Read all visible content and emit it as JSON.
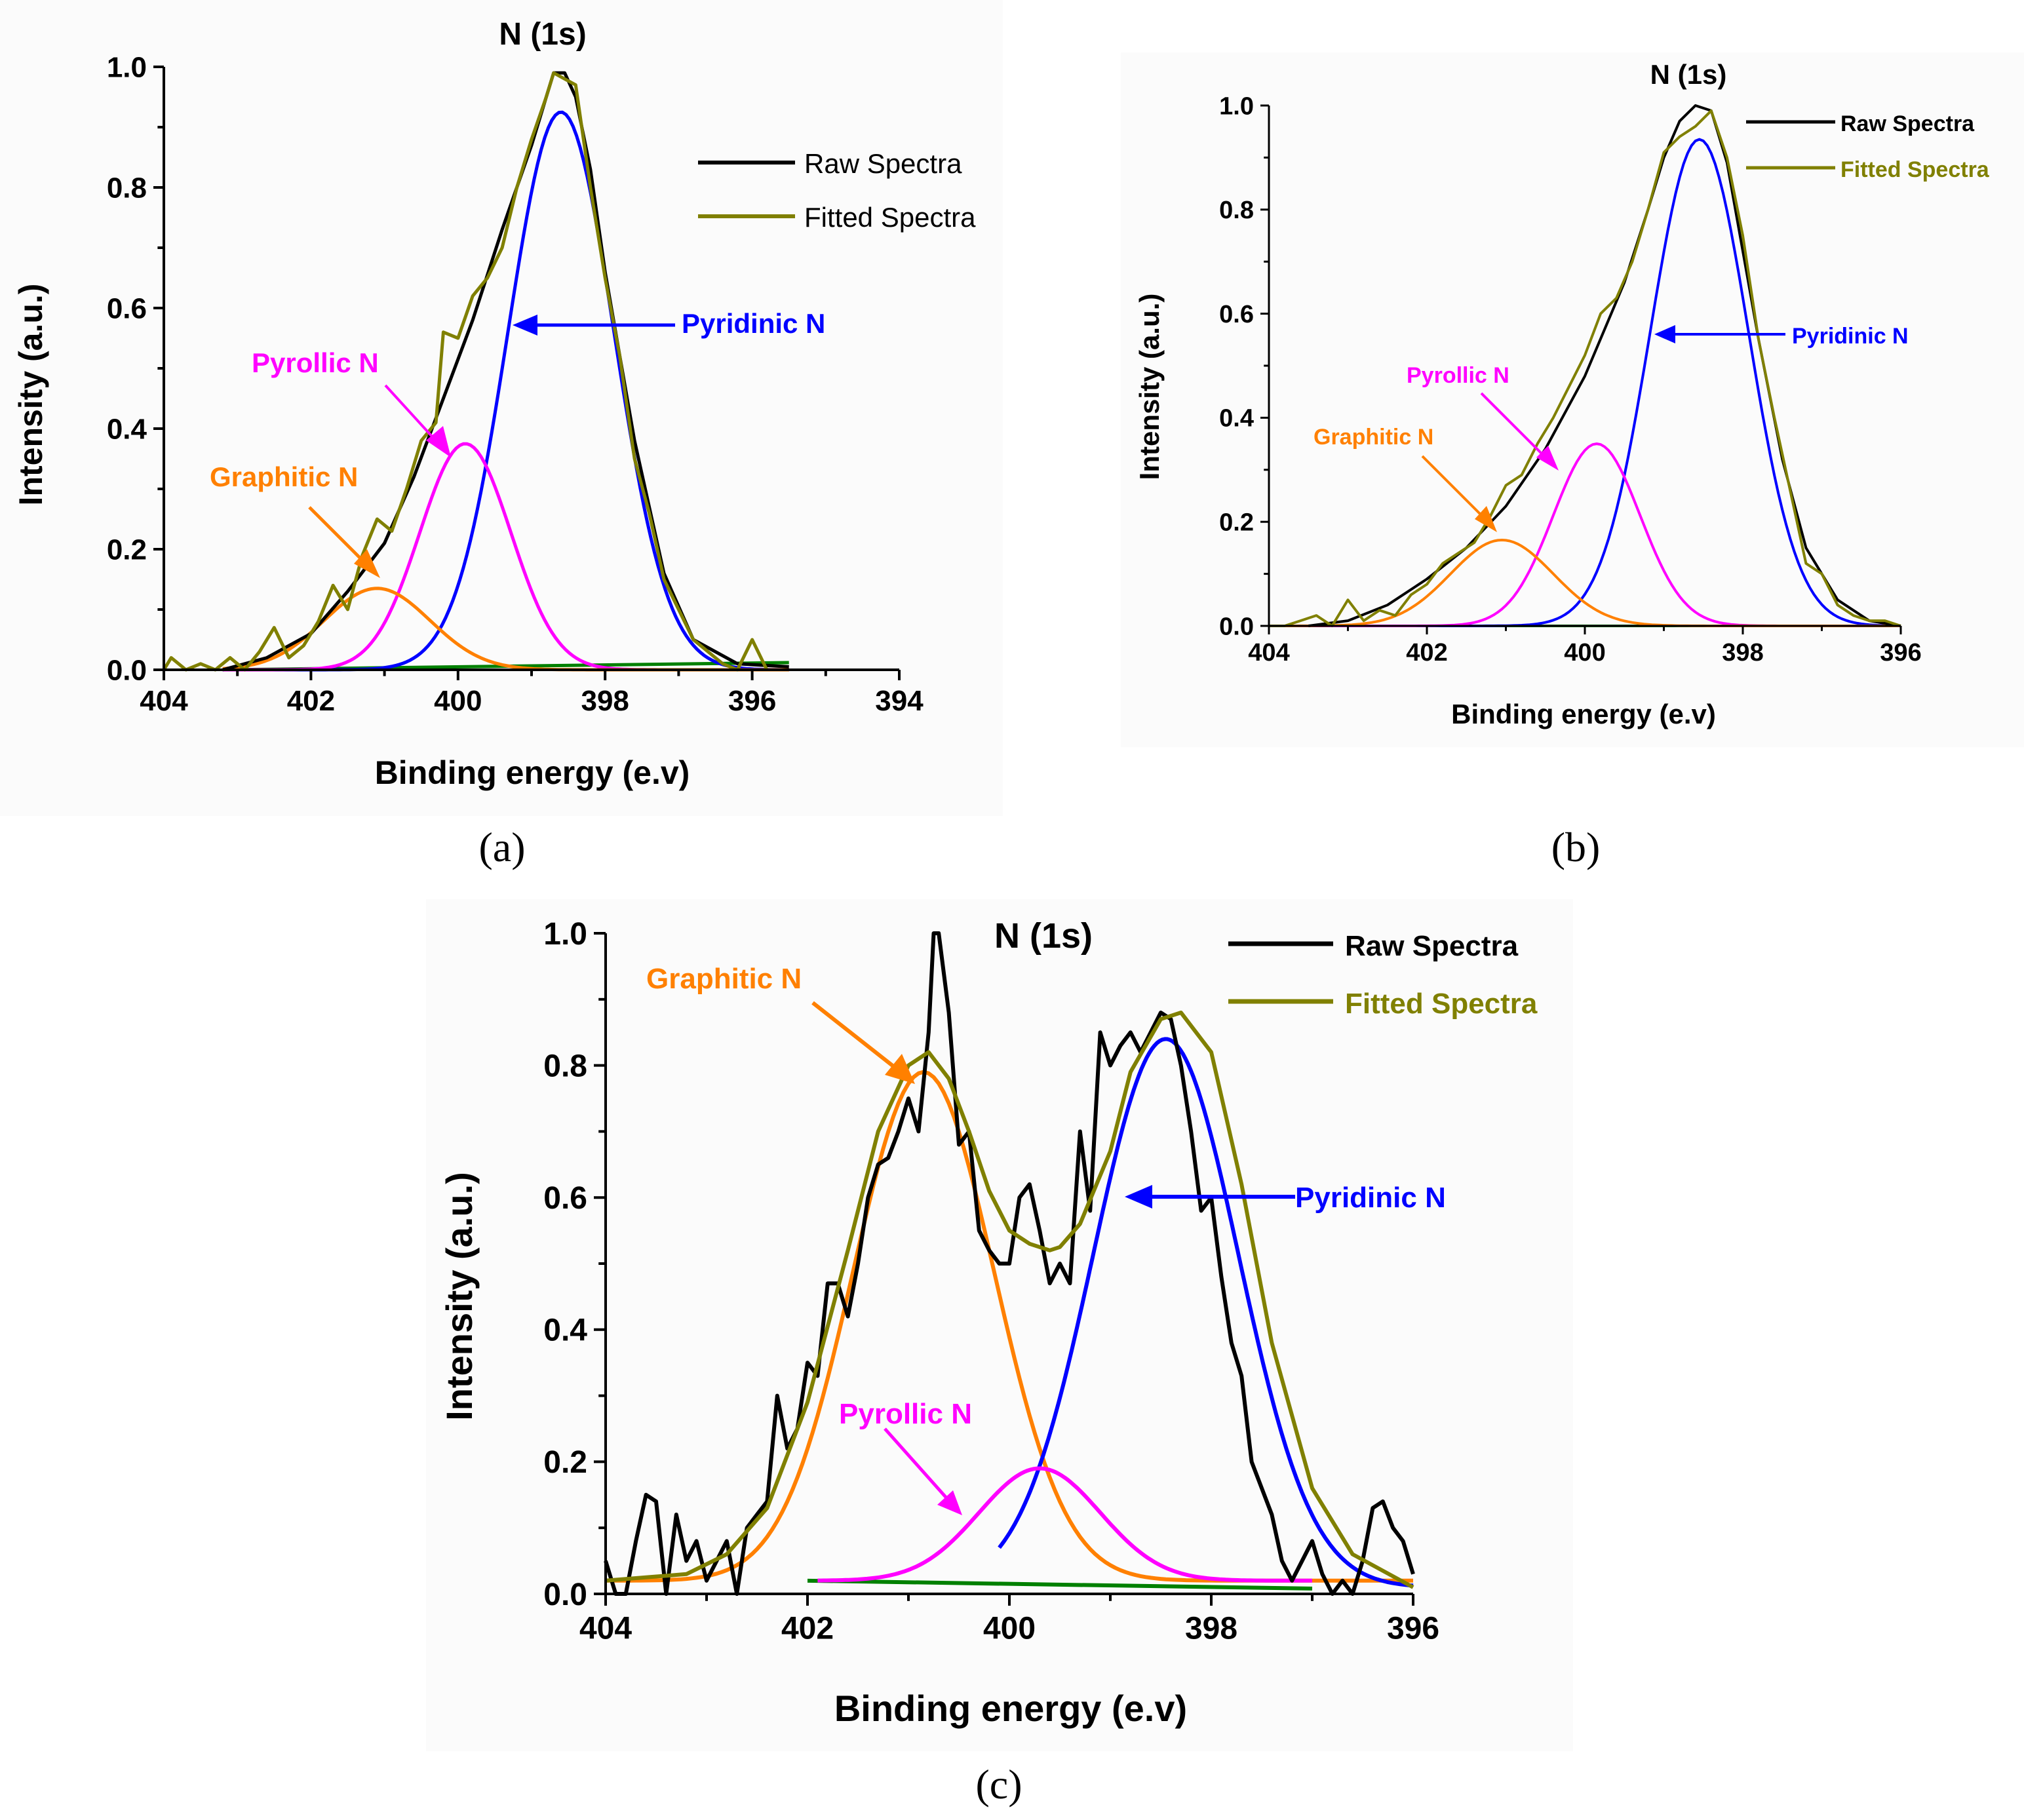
{
  "figure": {
    "captions": [
      "(a)",
      "(b)",
      "(c)"
    ]
  },
  "colors": {
    "raw": "#000000",
    "fitted": "#808000",
    "pyridinic": "#0000ff",
    "pyrollic": "#ff00ff",
    "graphitic": "#ff8000",
    "baseline": "#008000",
    "axis": "#000000"
  },
  "chart_data": [
    {
      "panel": "(a)",
      "type": "line",
      "title": "N (1s)",
      "xlabel": "Binding energy (e.v)",
      "ylabel": "Intensity (a.u.)",
      "xlim": [
        404,
        394
      ],
      "ylim": [
        0.0,
        1.0
      ],
      "xticks": [
        404,
        402,
        400,
        398,
        396,
        394
      ],
      "xtick_labels": [
        "404",
        "402",
        "400",
        "398",
        "396",
        "394"
      ],
      "yticks": [
        0.0,
        0.2,
        0.4,
        0.6,
        0.8,
        1.0
      ],
      "ytick_labels": [
        "0.0",
        "0.2",
        "0.4",
        "0.6",
        "0.8",
        "1.0"
      ],
      "legend": [
        "Raw Spectra",
        "Fitted Spectra"
      ],
      "legend_position": "top-right",
      "baseline": {
        "x": [
          403.2,
          395.5
        ],
        "y": [
          0.0,
          0.012
        ]
      },
      "components": [
        {
          "name": "Pyridinic N",
          "center": 398.6,
          "height": 0.925,
          "sigma": 0.72,
          "from": 403.2,
          "to": 395.5
        },
        {
          "name": "Pyrollic N",
          "center": 399.9,
          "height": 0.375,
          "sigma": 0.62,
          "from": 403.2,
          "to": 395.5
        },
        {
          "name": "Graphitic N",
          "center": 401.1,
          "height": 0.135,
          "sigma": 0.72,
          "from": 403.2,
          "to": 395.5
        }
      ],
      "series": [
        {
          "name": "Raw Spectra",
          "x": [
            403.2,
            402.6,
            402.0,
            401.5,
            401.0,
            400.6,
            400.2,
            399.8,
            399.4,
            399.0,
            398.8,
            398.7,
            398.55,
            398.4,
            398.2,
            398.0,
            397.6,
            397.2,
            396.8,
            396.2,
            395.5
          ],
          "y": [
            0.0,
            0.02,
            0.06,
            0.13,
            0.21,
            0.32,
            0.45,
            0.58,
            0.73,
            0.87,
            0.95,
            0.99,
            0.99,
            0.95,
            0.83,
            0.66,
            0.38,
            0.16,
            0.05,
            0.01,
            0.005
          ]
        },
        {
          "name": "Fitted Spectra",
          "x": [
            404.0,
            403.9,
            403.7,
            403.5,
            403.3,
            403.1,
            402.9,
            402.7,
            402.5,
            402.3,
            402.1,
            401.9,
            401.7,
            401.5,
            401.3,
            401.1,
            400.9,
            400.7,
            400.5,
            400.3,
            400.2,
            400.0,
            399.8,
            399.6,
            399.4,
            399.2,
            399.0,
            398.8,
            398.7,
            398.55,
            398.4,
            398.2,
            398.0,
            397.8,
            397.6,
            397.4,
            397.2,
            397.0,
            396.8,
            396.6,
            396.4,
            396.2,
            396.0,
            395.8
          ],
          "y": [
            0.0,
            0.02,
            0.0,
            0.01,
            0.0,
            0.02,
            0.0,
            0.03,
            0.07,
            0.02,
            0.04,
            0.08,
            0.14,
            0.1,
            0.19,
            0.25,
            0.23,
            0.3,
            0.38,
            0.41,
            0.56,
            0.55,
            0.62,
            0.65,
            0.7,
            0.8,
            0.88,
            0.95,
            0.99,
            0.98,
            0.97,
            0.8,
            0.65,
            0.52,
            0.35,
            0.26,
            0.15,
            0.1,
            0.05,
            0.03,
            0.01,
            0.0,
            0.05,
            0.0
          ]
        }
      ],
      "annotations": [
        {
          "text": "Pyridinic N",
          "color": "pyridinic"
        },
        {
          "text": "Pyrollic N",
          "color": "pyrollic"
        },
        {
          "text": "Graphitic N",
          "color": "graphitic"
        }
      ]
    },
    {
      "panel": "(b)",
      "type": "line",
      "title": "N (1s)",
      "xlabel": "Binding energy (e.v)",
      "ylabel": "Intensity (a.u.)",
      "xlim": [
        404,
        396
      ],
      "ylim": [
        0.0,
        1.0
      ],
      "xticks": [
        404,
        402,
        400,
        398,
        396
      ],
      "xtick_labels": [
        "404",
        "402",
        "400",
        "398",
        "396"
      ],
      "yticks": [
        0.0,
        0.2,
        0.4,
        0.6,
        0.8,
        1.0
      ],
      "ytick_labels": [
        "0.0",
        "0.2",
        "0.4",
        "0.6",
        "0.8",
        "1.0"
      ],
      "legend": [
        "Raw Spectra",
        "Fitted Spectra"
      ],
      "legend_position": "top-right",
      "baseline": {
        "x": [
          404.0,
          396.0
        ],
        "y": [
          0.0,
          0.0
        ]
      },
      "components": [
        {
          "name": "Pyridinic N",
          "center": 398.55,
          "height": 0.935,
          "sigma": 0.62,
          "from": 404.0,
          "to": 396.0
        },
        {
          "name": "Pyrollic N",
          "center": 399.85,
          "height": 0.35,
          "sigma": 0.55,
          "from": 404.0,
          "to": 396.0
        },
        {
          "name": "Graphitic N",
          "center": 401.05,
          "height": 0.165,
          "sigma": 0.65,
          "from": 404.0,
          "to": 396.0
        }
      ],
      "series": [
        {
          "name": "Raw Spectra",
          "x": [
            403.5,
            403.0,
            402.5,
            402.0,
            401.5,
            401.0,
            400.5,
            400.0,
            399.5,
            399.2,
            399.0,
            398.8,
            398.6,
            398.4,
            398.2,
            398.0,
            397.8,
            397.5,
            397.2,
            396.8,
            396.4,
            396.0
          ],
          "y": [
            0.0,
            0.01,
            0.04,
            0.09,
            0.15,
            0.23,
            0.34,
            0.48,
            0.66,
            0.8,
            0.9,
            0.97,
            1.0,
            0.99,
            0.89,
            0.72,
            0.55,
            0.32,
            0.15,
            0.05,
            0.01,
            0.0
          ]
        },
        {
          "name": "Fitted Spectra",
          "x": [
            404.0,
            403.8,
            403.6,
            403.4,
            403.2,
            403.0,
            402.8,
            402.6,
            402.4,
            402.2,
            402.0,
            401.8,
            401.6,
            401.4,
            401.2,
            401.0,
            400.8,
            400.6,
            400.4,
            400.2,
            400.0,
            399.8,
            399.6,
            399.4,
            399.2,
            399.0,
            398.8,
            398.6,
            398.4,
            398.2,
            398.0,
            397.8,
            397.6,
            397.4,
            397.2,
            397.0,
            396.8,
            396.6,
            396.4,
            396.2,
            396.0
          ],
          "y": [
            0.0,
            0.0,
            0.01,
            0.02,
            0.0,
            0.05,
            0.01,
            0.03,
            0.02,
            0.06,
            0.08,
            0.12,
            0.14,
            0.16,
            0.21,
            0.27,
            0.29,
            0.35,
            0.4,
            0.46,
            0.52,
            0.6,
            0.63,
            0.7,
            0.8,
            0.91,
            0.94,
            0.96,
            0.99,
            0.9,
            0.75,
            0.55,
            0.4,
            0.26,
            0.12,
            0.1,
            0.04,
            0.02,
            0.01,
            0.01,
            0.0
          ]
        }
      ],
      "annotations": [
        {
          "text": "Pyridinic N",
          "color": "pyridinic"
        },
        {
          "text": "Pyrollic N",
          "color": "pyrollic"
        },
        {
          "text": "Graphitic N",
          "color": "graphitic"
        }
      ]
    },
    {
      "panel": "(c)",
      "type": "line",
      "title": "N (1s)",
      "xlabel": "Binding energy (e.v)",
      "ylabel": "Intensity (a.u.)",
      "xlim": [
        404,
        396
      ],
      "ylim": [
        0.0,
        1.0
      ],
      "xticks": [
        404,
        402,
        400,
        398,
        396
      ],
      "xtick_labels": [
        "404",
        "402",
        "400",
        "398",
        "396"
      ],
      "yticks": [
        0.0,
        0.2,
        0.4,
        0.6,
        0.8,
        1.0
      ],
      "ytick_labels": [
        "0.0",
        "0.2",
        "0.4",
        "0.6",
        "0.8",
        "1.0"
      ],
      "legend": [
        "Raw Spectra",
        "Fitted Spectra"
      ],
      "legend_position": "top-right",
      "baseline": {
        "x": [
          402.0,
          397.0
        ],
        "y": [
          0.02,
          0.008
        ]
      },
      "components": [
        {
          "name": "Graphitic N",
          "center": 400.85,
          "height": 0.77,
          "sigma": 0.7,
          "from": 404.0,
          "to": 396.0,
          "base": 0.02
        },
        {
          "name": "Pyridinic N",
          "center": 398.45,
          "height": 0.83,
          "sigma": 0.72,
          "from": 400.1,
          "to": 396.0,
          "base": 0.01
        },
        {
          "name": "Pyrollic N",
          "center": 399.7,
          "height": 0.17,
          "sigma": 0.6,
          "from": 401.9,
          "to": 397.0,
          "base": 0.02
        }
      ],
      "series": [
        {
          "name": "Raw Spectra",
          "x": [
            404.0,
            403.9,
            403.8,
            403.7,
            403.6,
            403.5,
            403.4,
            403.3,
            403.2,
            403.1,
            403.0,
            402.9,
            402.8,
            402.7,
            402.6,
            402.5,
            402.4,
            402.3,
            402.2,
            402.1,
            402.0,
            401.9,
            401.8,
            401.7,
            401.6,
            401.5,
            401.4,
            401.3,
            401.2,
            401.1,
            401.0,
            400.9,
            400.8,
            400.75,
            400.7,
            400.6,
            400.5,
            400.4,
            400.3,
            400.2,
            400.1,
            400.0,
            399.9,
            399.8,
            399.7,
            399.6,
            399.5,
            399.4,
            399.3,
            399.2,
            399.1,
            399.0,
            398.9,
            398.8,
            398.7,
            398.6,
            398.5,
            398.4,
            398.3,
            398.2,
            398.1,
            398.0,
            397.9,
            397.8,
            397.7,
            397.6,
            397.5,
            397.4,
            397.3,
            397.2,
            397.1,
            397.0,
            396.9,
            396.8,
            396.7,
            396.6,
            396.5,
            396.4,
            396.3,
            396.2,
            396.1,
            396.0
          ],
          "y": [
            0.05,
            0.0,
            0.0,
            0.08,
            0.15,
            0.14,
            0.0,
            0.12,
            0.05,
            0.08,
            0.02,
            0.05,
            0.08,
            0.0,
            0.1,
            0.12,
            0.14,
            0.3,
            0.22,
            0.25,
            0.35,
            0.33,
            0.47,
            0.47,
            0.42,
            0.5,
            0.6,
            0.65,
            0.66,
            0.7,
            0.75,
            0.7,
            0.85,
            1.0,
            1.0,
            0.88,
            0.68,
            0.7,
            0.55,
            0.52,
            0.5,
            0.5,
            0.6,
            0.62,
            0.55,
            0.47,
            0.5,
            0.47,
            0.7,
            0.58,
            0.85,
            0.8,
            0.83,
            0.85,
            0.82,
            0.85,
            0.88,
            0.87,
            0.8,
            0.7,
            0.58,
            0.6,
            0.48,
            0.38,
            0.33,
            0.2,
            0.16,
            0.12,
            0.05,
            0.02,
            0.05,
            0.08,
            0.03,
            0.0,
            0.02,
            0.0,
            0.05,
            0.13,
            0.14,
            0.1,
            0.08,
            0.03
          ]
        },
        {
          "name": "Fitted Spectra",
          "x": [
            404.0,
            403.6,
            403.2,
            402.8,
            402.4,
            402.0,
            401.6,
            401.3,
            401.0,
            400.8,
            400.6,
            400.4,
            400.2,
            400.0,
            399.8,
            399.6,
            399.5,
            399.3,
            399.0,
            398.8,
            398.5,
            398.3,
            398.0,
            397.7,
            397.4,
            397.0,
            396.6,
            396.0
          ],
          "y": [
            0.02,
            0.025,
            0.03,
            0.06,
            0.13,
            0.29,
            0.52,
            0.7,
            0.8,
            0.82,
            0.78,
            0.7,
            0.61,
            0.55,
            0.53,
            0.52,
            0.525,
            0.56,
            0.67,
            0.79,
            0.87,
            0.88,
            0.82,
            0.62,
            0.38,
            0.16,
            0.06,
            0.01
          ]
        }
      ],
      "annotations": [
        {
          "text": "Graphitic N",
          "color": "graphitic"
        },
        {
          "text": "Pyridinic N",
          "color": "pyridinic"
        },
        {
          "text": "Pyrollic N",
          "color": "pyrollic"
        }
      ]
    }
  ]
}
